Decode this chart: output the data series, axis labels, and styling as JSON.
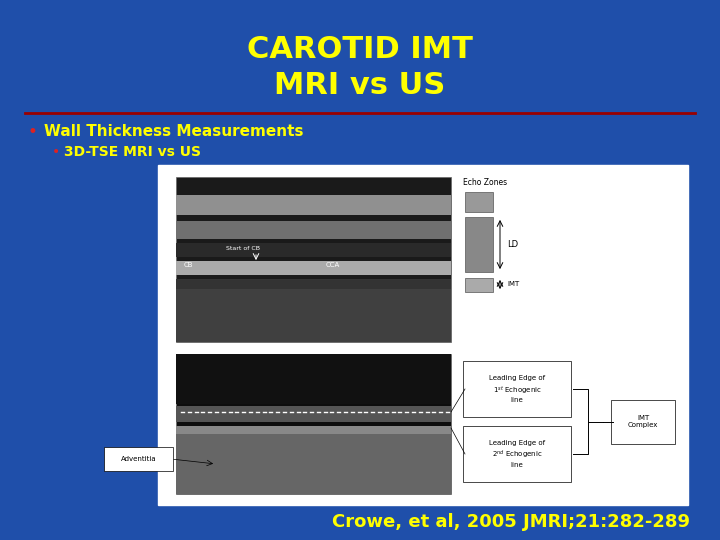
{
  "background_color": "#1f4faa",
  "title_line1": "CAROTID IMT",
  "title_line2": "MRI vs US",
  "title_color": "#ffff00",
  "title_fontsize": 22,
  "separator_color": "#990000",
  "bullet1_text": "Wall Thickness Measurements",
  "bullet1_color": "#ffff00",
  "bullet1_fontsize": 11,
  "bullet2_text": "3D-TSE MRI vs US",
  "bullet2_color": "#ffff00",
  "bullet2_fontsize": 10,
  "bullet_color": "#dd2222",
  "citation_text": "Crowe, et al, 2005 JMRI;21:282-289",
  "citation_color": "#ffff00",
  "citation_fontsize": 13
}
